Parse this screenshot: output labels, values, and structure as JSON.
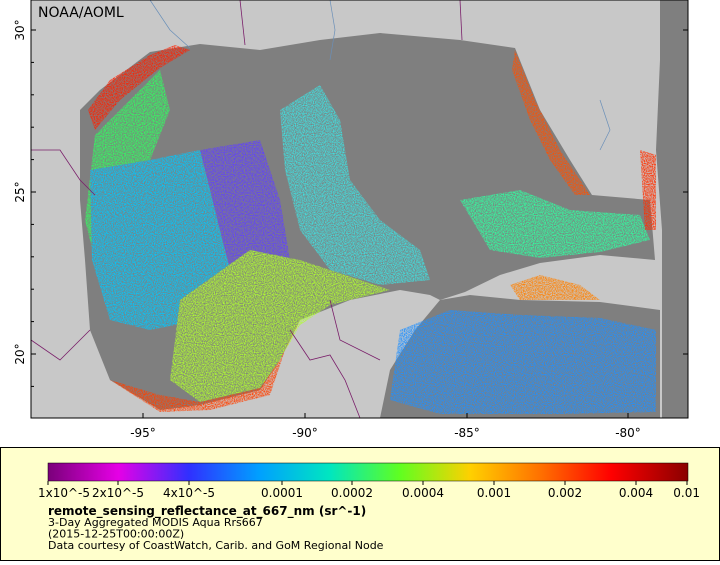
{
  "map": {
    "watermark": "NOAA/AOML",
    "lat_labels": [
      "30°",
      "25°",
      "20°"
    ],
    "lon_labels": [
      "-95°",
      "-90°",
      "-85°",
      "-80°"
    ]
  },
  "colorbar": {
    "labels": [
      "1x10^-5",
      "2x10^-5",
      "4x10^-5",
      "0.0001",
      "0.0002",
      "0.0004",
      "0.001",
      "0.002",
      "0.004",
      "0.01"
    ]
  },
  "legend": {
    "variable": "remote_sensing_reflectance_at_667_nm (sr^-1)",
    "lines": [
      "3-Day Aggregated MODIS Aqua Rrs667",
      "(2015-12-25T00:00:00Z)",
      "Data courtesy of CoastWatch, Carib. and GoM Regional Node"
    ]
  }
}
